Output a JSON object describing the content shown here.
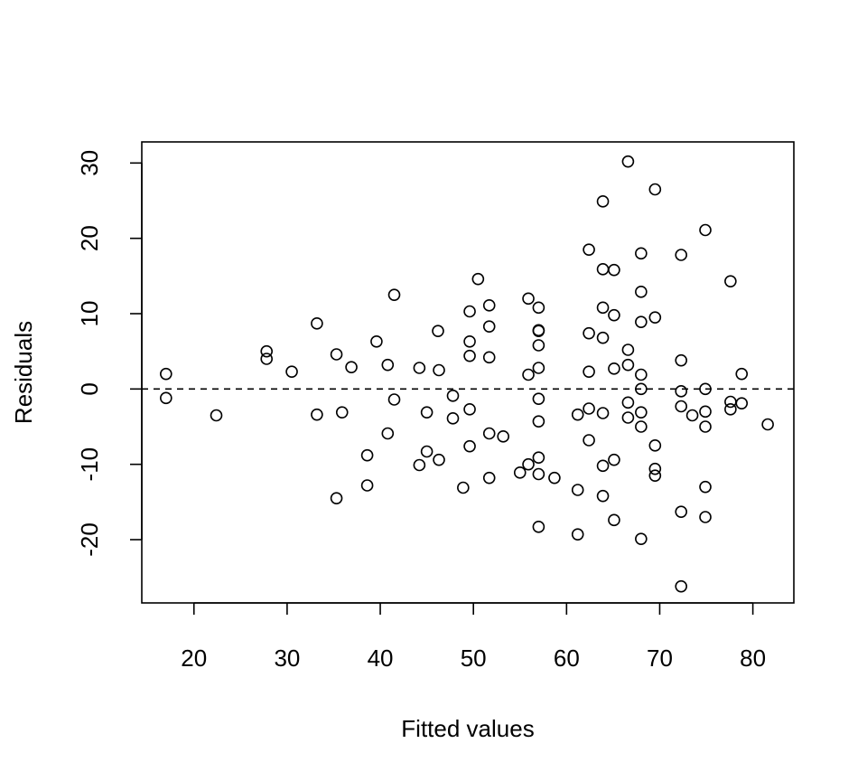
{
  "chart_data": {
    "type": "scatter",
    "title": "",
    "xlabel": "Fitted values",
    "ylabel": "Residuals",
    "xlim": [
      14.4,
      84.4
    ],
    "ylim": [
      -28.4,
      32.8
    ],
    "xticks": [
      20,
      30,
      40,
      50,
      60,
      70,
      80
    ],
    "yticks": [
      -20,
      -10,
      0,
      10,
      20,
      30
    ],
    "reference_line": {
      "y": 0,
      "style": "dashed"
    },
    "grid": false,
    "legend": "none",
    "marker": "open-circle",
    "colors": {
      "points": "#000000",
      "axes": "#000000",
      "reference_line": "#000000"
    },
    "points": [
      [
        17,
        2
      ],
      [
        17,
        -1.2
      ],
      [
        22.4,
        -3.5
      ],
      [
        27.8,
        5
      ],
      [
        27.8,
        4
      ],
      [
        30.5,
        2.3
      ],
      [
        33.2,
        8.7
      ],
      [
        33.2,
        -3.4
      ],
      [
        35.3,
        4.6
      ],
      [
        35.3,
        -14.5
      ],
      [
        35.9,
        -3.1
      ],
      [
        36.9,
        2.9
      ],
      [
        38.6,
        -8.8
      ],
      [
        38.6,
        -12.8
      ],
      [
        39.6,
        6.3
      ],
      [
        40.8,
        3.2
      ],
      [
        40.8,
        -5.9
      ],
      [
        41.5,
        12.5
      ],
      [
        41.5,
        -1.4
      ],
      [
        44.2,
        2.8
      ],
      [
        44.2,
        -10.1
      ],
      [
        45,
        -3.1
      ],
      [
        45,
        -8.3
      ],
      [
        46.2,
        7.7
      ],
      [
        46.3,
        2.5
      ],
      [
        46.3,
        -9.4
      ],
      [
        47.8,
        -0.9
      ],
      [
        47.8,
        -3.9
      ],
      [
        48.9,
        -13.1
      ],
      [
        49.6,
        10.3
      ],
      [
        49.6,
        6.3
      ],
      [
        49.6,
        4.4
      ],
      [
        49.6,
        -2.7
      ],
      [
        49.6,
        -7.6
      ],
      [
        50.5,
        14.6
      ],
      [
        51.7,
        11.1
      ],
      [
        51.7,
        8.3
      ],
      [
        51.7,
        4.2
      ],
      [
        51.7,
        -5.9
      ],
      [
        51.7,
        -11.8
      ],
      [
        53.2,
        -6.3
      ],
      [
        55,
        -11.1
      ],
      [
        55.9,
        12
      ],
      [
        55.9,
        1.9
      ],
      [
        55.9,
        -10
      ],
      [
        57,
        10.8
      ],
      [
        57,
        7.8
      ],
      [
        57,
        7.7
      ],
      [
        57,
        5.8
      ],
      [
        57,
        2.8
      ],
      [
        57,
        -1.3
      ],
      [
        57,
        -4.3
      ],
      [
        57,
        -9.1
      ],
      [
        57,
        -11.3
      ],
      [
        57,
        -18.3
      ],
      [
        58.7,
        -11.8
      ],
      [
        61.2,
        -3.4
      ],
      [
        61.2,
        -13.4
      ],
      [
        61.2,
        -19.3
      ],
      [
        62.4,
        18.5
      ],
      [
        62.4,
        7.4
      ],
      [
        62.4,
        2.3
      ],
      [
        62.4,
        -2.6
      ],
      [
        62.4,
        -6.8
      ],
      [
        63.9,
        24.9
      ],
      [
        63.9,
        15.9
      ],
      [
        63.9,
        10.8
      ],
      [
        63.9,
        6.8
      ],
      [
        63.9,
        -3.2
      ],
      [
        63.9,
        -10.2
      ],
      [
        63.9,
        -14.2
      ],
      [
        65.1,
        15.8
      ],
      [
        65.1,
        9.8
      ],
      [
        65.1,
        2.7
      ],
      [
        65.1,
        -9.4
      ],
      [
        65.1,
        -17.4
      ],
      [
        66.6,
        30.2
      ],
      [
        66.6,
        5.2
      ],
      [
        66.6,
        3.2
      ],
      [
        66.6,
        -1.8
      ],
      [
        66.6,
        -3.8
      ],
      [
        68,
        18
      ],
      [
        68,
        12.9
      ],
      [
        68,
        8.9
      ],
      [
        68,
        1.9
      ],
      [
        68,
        0
      ],
      [
        68,
        -3.1
      ],
      [
        68,
        -5
      ],
      [
        68,
        -19.9
      ],
      [
        69.5,
        26.5
      ],
      [
        69.5,
        9.5
      ],
      [
        69.5,
        -7.5
      ],
      [
        69.5,
        -10.6
      ],
      [
        69.5,
        -11.5
      ],
      [
        72.3,
        17.8
      ],
      [
        72.3,
        3.8
      ],
      [
        72.3,
        -0.3
      ],
      [
        72.3,
        -2.3
      ],
      [
        72.3,
        -16.3
      ],
      [
        72.3,
        -26.2
      ],
      [
        73.5,
        -3.5
      ],
      [
        74.9,
        21.1
      ],
      [
        74.9,
        0
      ],
      [
        74.9,
        -3
      ],
      [
        74.9,
        -5
      ],
      [
        74.9,
        -13
      ],
      [
        74.9,
        -17
      ],
      [
        77.6,
        14.3
      ],
      [
        77.6,
        -1.7
      ],
      [
        77.6,
        -2.7
      ],
      [
        78.8,
        2
      ],
      [
        78.8,
        -1.9
      ],
      [
        81.6,
        -4.7
      ]
    ]
  }
}
